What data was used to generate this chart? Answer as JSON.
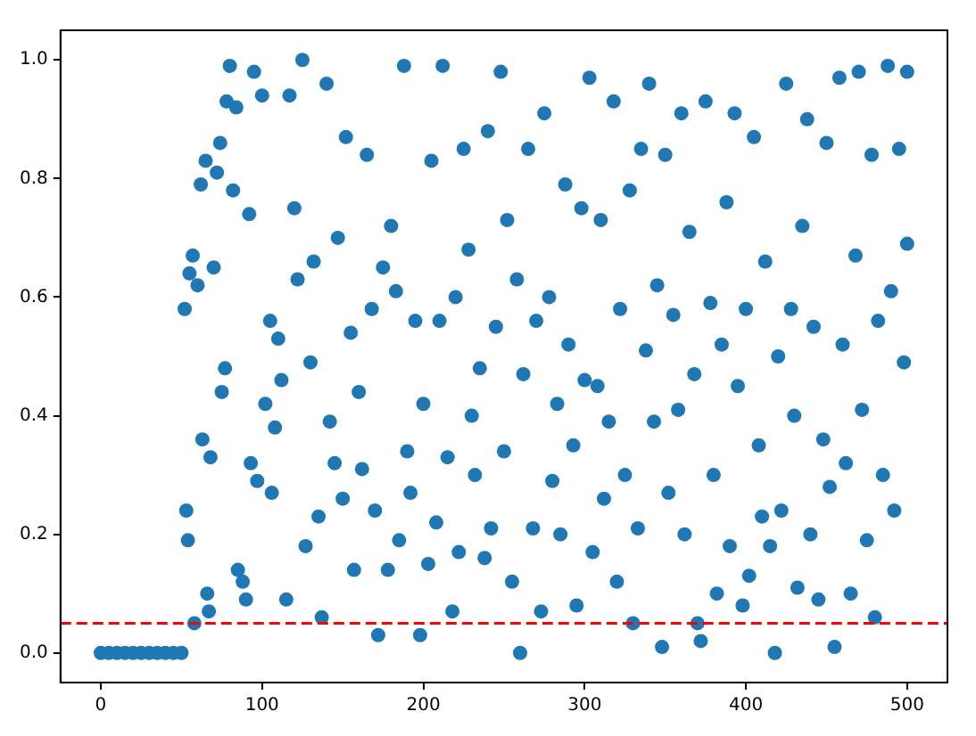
{
  "chart_data": {
    "type": "scatter",
    "marker": "circle",
    "grid": false,
    "legend": false,
    "xlim": [
      -25,
      525
    ],
    "xticks": [
      0,
      100,
      200,
      300,
      400,
      500
    ],
    "ylim": [
      -0.05,
      1.05
    ],
    "yticks": [
      {
        "value": 0,
        "label": "0.0"
      },
      {
        "value": 0.2,
        "label": "0.2"
      },
      {
        "value": 0.4,
        "label": "0.4"
      },
      {
        "value": 0.6,
        "label": "0.6"
      },
      {
        "value": 0.8,
        "label": "0.8"
      },
      {
        "value": 1,
        "label": "1.0"
      }
    ],
    "ref_lines": [
      {
        "axis": "y",
        "value": 0.05,
        "label": null,
        "color": "#ff0000",
        "line_style": "dashed"
      }
    ],
    "series": [
      {
        "color": "#1f77b4",
        "x": [
          0,
          5,
          10,
          15,
          20,
          25,
          30,
          35,
          40,
          45,
          50,
          52,
          53,
          54,
          55,
          57,
          58,
          60,
          62,
          63,
          65,
          66,
          67,
          68,
          70,
          72,
          74,
          75,
          77,
          78,
          80,
          82,
          84,
          85,
          88,
          90,
          92,
          93,
          95,
          97,
          100,
          102,
          105,
          106,
          108,
          110,
          112,
          115,
          117,
          120,
          122,
          125,
          127,
          130,
          132,
          135,
          137,
          140,
          142,
          145,
          147,
          150,
          152,
          155,
          157,
          160,
          162,
          165,
          168,
          170,
          172,
          175,
          178,
          180,
          183,
          185,
          188,
          190,
          192,
          195,
          198,
          200,
          203,
          205,
          208,
          210,
          212,
          215,
          218,
          220,
          222,
          225,
          228,
          230,
          232,
          235,
          238,
          240,
          242,
          245,
          248,
          250,
          252,
          255,
          258,
          260,
          262,
          265,
          268,
          270,
          273,
          275,
          278,
          280,
          283,
          285,
          288,
          290,
          293,
          295,
          298,
          300,
          303,
          305,
          308,
          310,
          312,
          315,
          318,
          320,
          322,
          325,
          328,
          330,
          333,
          335,
          338,
          340,
          343,
          345,
          348,
          350,
          352,
          355,
          358,
          360,
          362,
          365,
          368,
          370,
          372,
          375,
          378,
          380,
          382,
          385,
          388,
          390,
          393,
          395,
          398,
          400,
          402,
          405,
          408,
          410,
          412,
          415,
          418,
          420,
          422,
          425,
          428,
          430,
          432,
          435,
          438,
          440,
          442,
          445,
          448,
          450,
          452,
          455,
          458,
          460,
          462,
          465,
          468,
          470,
          472,
          475,
          478,
          480,
          482,
          485,
          488,
          490,
          492,
          495,
          498,
          500,
          500
        ],
        "values": [
          0,
          0,
          0,
          0,
          0,
          0,
          0,
          0,
          0,
          0,
          0,
          0.58,
          0.24,
          0.19,
          0.64,
          0.67,
          0.05,
          0.62,
          0.79,
          0.36,
          0.83,
          0.1,
          0.07,
          0.33,
          0.65,
          0.81,
          0.86,
          0.44,
          0.48,
          0.93,
          0.99,
          0.78,
          0.92,
          0.14,
          0.12,
          0.09,
          0.74,
          0.32,
          0.98,
          0.29,
          0.94,
          0.42,
          0.56,
          0.27,
          0.38,
          0.53,
          0.46,
          0.09,
          0.94,
          0.75,
          0.63,
          1.0,
          0.18,
          0.49,
          0.66,
          0.23,
          0.06,
          0.96,
          0.39,
          0.32,
          0.7,
          0.26,
          0.87,
          0.54,
          0.14,
          0.44,
          0.31,
          0.84,
          0.58,
          0.24,
          0.03,
          0.65,
          0.14,
          0.72,
          0.61,
          0.19,
          0.99,
          0.34,
          0.27,
          0.56,
          0.03,
          0.42,
          0.15,
          0.83,
          0.22,
          0.56,
          0.99,
          0.33,
          0.07,
          0.6,
          0.17,
          0.85,
          0.68,
          0.4,
          0.3,
          0.48,
          0.16,
          0.88,
          0.21,
          0.55,
          0.98,
          0.34,
          0.73,
          0.12,
          0.63,
          0.0,
          0.47,
          0.85,
          0.21,
          0.56,
          0.07,
          0.91,
          0.6,
          0.29,
          0.42,
          0.2,
          0.79,
          0.52,
          0.35,
          0.08,
          0.75,
          0.46,
          0.97,
          0.17,
          0.45,
          0.73,
          0.26,
          0.39,
          0.93,
          0.12,
          0.58,
          0.3,
          0.78,
          0.05,
          0.21,
          0.85,
          0.51,
          0.96,
          0.39,
          0.62,
          0.01,
          0.84,
          0.27,
          0.57,
          0.41,
          0.91,
          0.2,
          0.71,
          0.47,
          0.05,
          0.02,
          0.93,
          0.59,
          0.3,
          0.1,
          0.52,
          0.76,
          0.18,
          0.91,
          0.45,
          0.08,
          0.58,
          0.13,
          0.87,
          0.35,
          0.23,
          0.66,
          0.18,
          0.0,
          0.5,
          0.24,
          0.96,
          0.58,
          0.4,
          0.11,
          0.72,
          0.9,
          0.2,
          0.55,
          0.09,
          0.36,
          0.86,
          0.28,
          0.01,
          0.97,
          0.52,
          0.32,
          0.1,
          0.67,
          0.98,
          0.41,
          0.19,
          0.84,
          0.06,
          0.56,
          0.3,
          0.99,
          0.61,
          0.24,
          0.85,
          0.49,
          0.98,
          0.69
        ]
      }
    ]
  }
}
